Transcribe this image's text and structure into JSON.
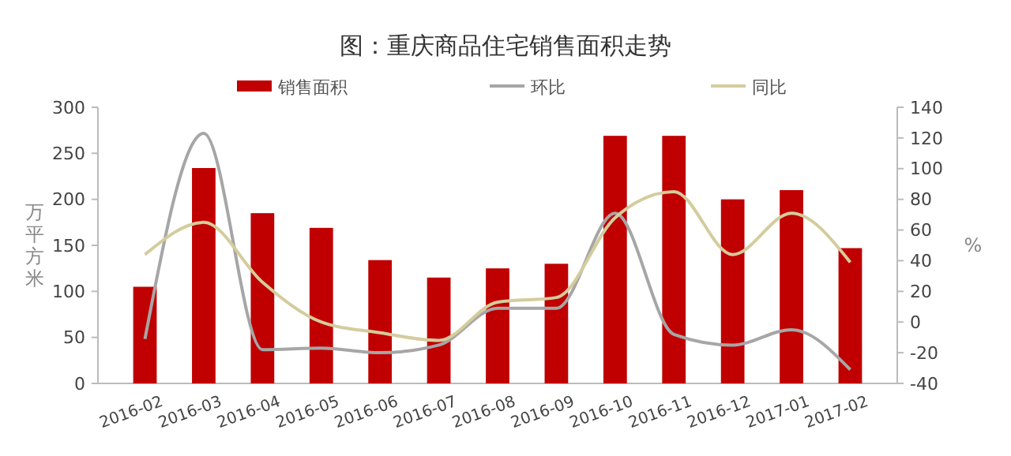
{
  "chart_data": {
    "type": "bar",
    "title": "图：重庆商品住宅销售面积走势",
    "ylabel": "万平方米",
    "y2label": "%",
    "categories": [
      "2016-02",
      "2016-03",
      "2016-04",
      "2016-05",
      "2016-06",
      "2016-07",
      "2016-08",
      "2016-09",
      "2016-10",
      "2016-11",
      "2016-12",
      "2017-01",
      "2017-02"
    ],
    "series": [
      {
        "name": "销售面积",
        "color": "#c00000",
        "values": [
          105,
          234,
          185,
          169,
          134,
          115,
          125,
          130,
          269,
          269,
          200,
          210,
          147
        ]
      },
      {
        "name": "环比",
        "type": "line",
        "axis": "y2",
        "color": "#a6a6a6",
        "values": [
          -11,
          123,
          -18,
          -17,
          -20,
          -15,
          9,
          9,
          71,
          -8,
          -15,
          -5,
          -31
        ]
      },
      {
        "name": "同比",
        "type": "line",
        "axis": "y2",
        "color": "#d4cc9c",
        "values": [
          44,
          65,
          26,
          0,
          -7,
          -12,
          13,
          16,
          68,
          85,
          44,
          71,
          39
        ]
      }
    ],
    "ylim": [
      0,
      300
    ],
    "yticks": [
      0,
      50,
      100,
      150,
      200,
      250,
      300
    ],
    "y2lim": [
      -40,
      140
    ],
    "y2ticks": [
      -40,
      -20,
      0,
      20,
      40,
      60,
      80,
      100,
      120,
      140
    ],
    "legend": "top",
    "grid": false
  }
}
